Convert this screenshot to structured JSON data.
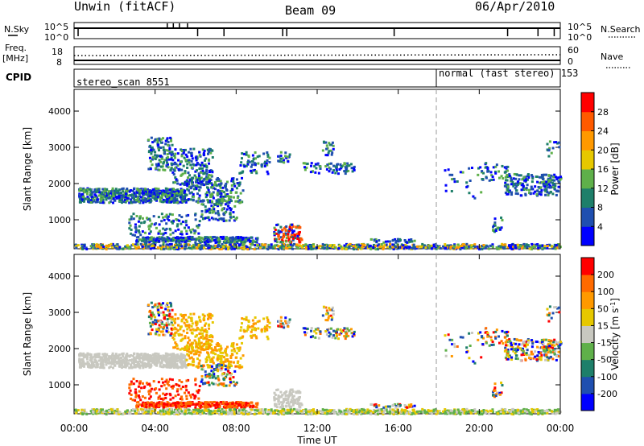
{
  "header": {
    "station": "Unwin (fitACF)",
    "beam": "Beam 09",
    "date": "06/Apr/2010"
  },
  "strips": {
    "nsky_label": "N.Sky",
    "nsky_ticks": [
      "10^5",
      "10^0"
    ],
    "nsearch_label": "N.Search",
    "nsearch_ticks": [
      "10^5",
      "10^0"
    ],
    "freq_label": "Freq.",
    "freq_unit": "[MHz]",
    "freq_ticks": [
      "18",
      "8"
    ],
    "nave_label": "Nave",
    "nave_ticks": [
      "60",
      "0"
    ],
    "cpid_label": "CPID",
    "cpid_segments": [
      {
        "label": "stereo_scan 8551",
        "start_h": 0,
        "end_h": 18.0
      },
      {
        "label": "normal (fast stereo) 153",
        "start_h": 18.0,
        "end_h": 24
      }
    ]
  },
  "chart_data": [
    {
      "type": "heatmap",
      "name": "power",
      "ylabel": "Slant Range [km]",
      "ylim": [
        200,
        4600
      ],
      "yticks": [
        "4000",
        "3000",
        "2000",
        "1000"
      ],
      "xlim_hours": [
        0,
        24
      ],
      "colorbar_label": "Power [dB]",
      "colorbar_ticks": [
        "28",
        "24",
        "20",
        "16",
        "12",
        "8",
        "4"
      ],
      "colorscale": [
        "#0000ff",
        "#1f4fb0",
        "#1e7f6a",
        "#5fb04a",
        "#e6c800",
        "#ff9900",
        "#ff5a00",
        "#ff0000"
      ]
    },
    {
      "type": "heatmap",
      "name": "velocity",
      "ylabel": "Slant Range [km]",
      "ylim": [
        200,
        4600
      ],
      "yticks": [
        "4000",
        "3000",
        "2000",
        "1000"
      ],
      "xlabel": "Time UT",
      "xticks": [
        "00:00",
        "04:00",
        "08:00",
        "12:00",
        "16:00",
        "20:00",
        "00:00"
      ],
      "xlim_hours": [
        0,
        24
      ],
      "colorbar_label": "Velocity [m s",
      "colorbar_label_sup": "-1",
      "colorbar_label_end": "]",
      "colorbar_ticks": [
        "200",
        "100",
        "50",
        "15",
        "-15",
        "-50",
        "-100",
        "-200"
      ],
      "colorscale": [
        "#ff0000",
        "#ff6a00",
        "#ff9900",
        "#e6c800",
        "#c8c8c0",
        "#5fb04a",
        "#1e7f6a",
        "#1f4fb0",
        "#0000ff"
      ]
    }
  ]
}
